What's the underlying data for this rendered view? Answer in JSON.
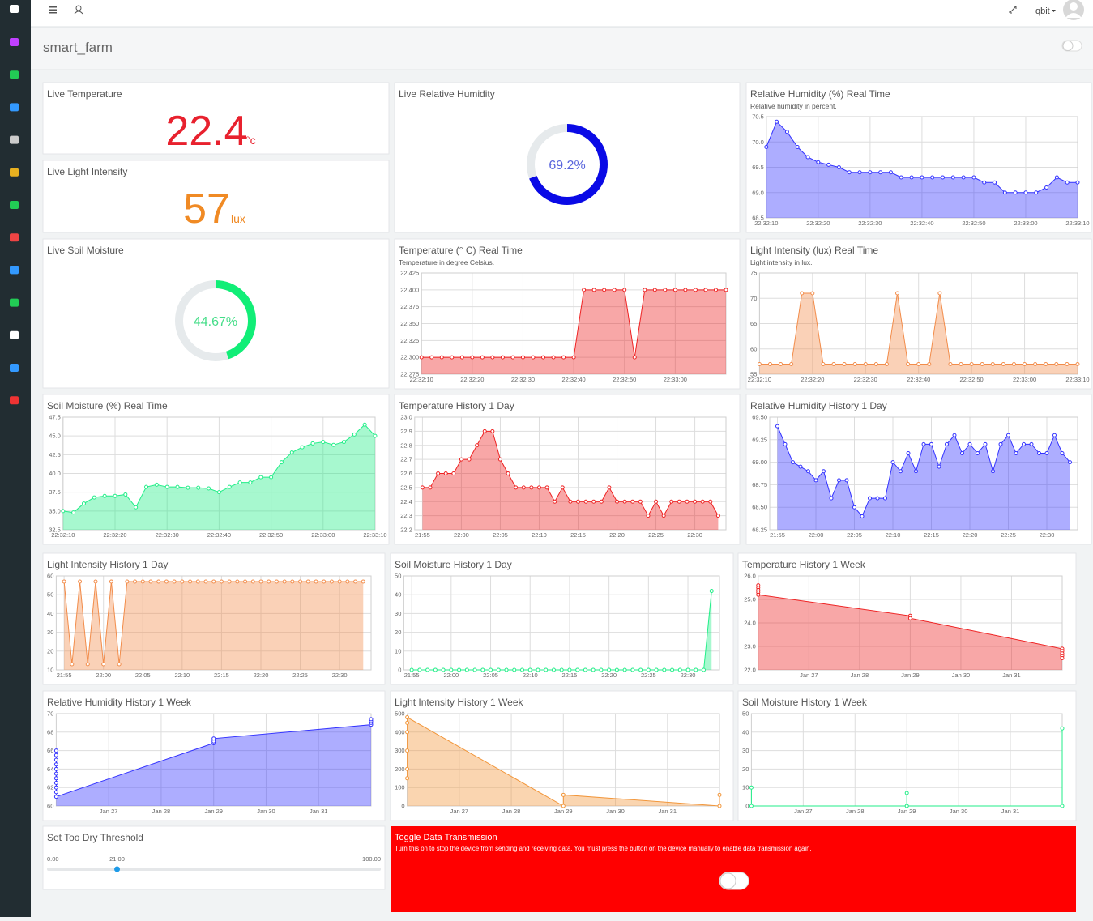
{
  "header": {
    "user": "qbit"
  },
  "page": {
    "title": "smart_farm"
  },
  "widgets": {
    "live_temperature": {
      "title": "Live Temperature",
      "value": 22.4,
      "unit": "°c"
    },
    "live_light": {
      "title": "Live Light Intensity",
      "value": 57,
      "unit": "lux"
    },
    "live_humidity": {
      "title": "Live Relative Humidity",
      "value": 69.2,
      "value_label": "69.2%"
    },
    "live_soil": {
      "title": "Live Soil Moisture",
      "value": 44.67,
      "value_label": "44.67%"
    },
    "threshold": {
      "title": "Set Too Dry Threshold",
      "min": {
        "value": 0,
        "label": "0.00"
      },
      "max": {
        "value": 100,
        "label": "100.00"
      },
      "value": {
        "value": 21,
        "label": "21.00"
      }
    },
    "transmission": {
      "title": "Toggle Data Transmission",
      "description": "Turn this on to stop the device from sending and receiving data. You must press the button on the device manually to enable data transmission again."
    }
  },
  "chart_data": [
    {
      "type": "area",
      "title": "Relative Humidity (%) Real Time",
      "subtitle": "Relative humidity in percent.",
      "color": "#3333ff",
      "grid": true,
      "x": [
        "22:32:10",
        "22:32:12",
        "22:32:14",
        "22:32:16",
        "22:32:18",
        "22:32:20",
        "22:32:22",
        "22:32:24",
        "22:32:26",
        "22:32:28",
        "22:32:30",
        "22:32:32",
        "22:32:34",
        "22:32:36",
        "22:32:38",
        "22:32:40",
        "22:32:42",
        "22:32:44",
        "22:32:46",
        "22:32:48",
        "22:32:50",
        "22:32:52",
        "22:32:54",
        "22:32:56",
        "22:32:58",
        "22:33:00",
        "22:33:02",
        "22:33:04",
        "22:33:06",
        "22:33:08",
        "22:33:10"
      ],
      "values": [
        69.9,
        70.4,
        70.2,
        69.9,
        69.7,
        69.6,
        69.55,
        69.5,
        69.4,
        69.4,
        69.4,
        69.4,
        69.4,
        69.3,
        69.3,
        69.3,
        69.3,
        69.3,
        69.3,
        69.3,
        69.3,
        69.2,
        69.2,
        69.0,
        69.0,
        69.0,
        69.0,
        69.1,
        69.3,
        69.2,
        69.2
      ],
      "xlim": [
        "22:32:10",
        "22:33:10"
      ],
      "xticks": [
        "22:32:10",
        "22:32:20",
        "22:32:30",
        "22:32:40",
        "22:32:50",
        "22:33:00",
        "22:33:10"
      ],
      "ylim": [
        68.5,
        70.5
      ],
      "yticks": [
        68.5,
        {
          "value": 69,
          "label": "69.0"
        },
        69.5,
        {
          "value": 70,
          "label": "70.0"
        },
        70.5
      ]
    },
    {
      "type": "area",
      "title": "Temperature (° C) Real Time",
      "subtitle": "Temperature in degree Celsius.",
      "color": "#ee2222",
      "grid": true,
      "x": [
        "22:32:10",
        "22:32:12",
        "22:32:14",
        "22:32:16",
        "22:32:18",
        "22:32:20",
        "22:32:22",
        "22:32:24",
        "22:32:26",
        "22:32:28",
        "22:32:30",
        "22:32:32",
        "22:32:34",
        "22:32:36",
        "22:32:38",
        "22:32:40",
        "22:32:42",
        "22:32:44",
        "22:32:46",
        "22:32:48",
        "22:32:50",
        "22:32:52",
        "22:32:54",
        "22:32:56",
        "22:32:58",
        "22:33:00",
        "22:33:02",
        "22:33:04",
        "22:33:06",
        "22:33:08",
        "22:33:10"
      ],
      "values": [
        22.3,
        22.3,
        22.3,
        22.3,
        22.3,
        22.3,
        22.3,
        22.3,
        22.3,
        22.3,
        22.3,
        22.3,
        22.3,
        22.3,
        22.3,
        22.3,
        22.4,
        22.4,
        22.4,
        22.4,
        22.4,
        22.3,
        22.4,
        22.4,
        22.4,
        22.4,
        22.4,
        22.4,
        22.4,
        22.4,
        22.4
      ],
      "xlim": [
        "22:32:10",
        "22:33:10"
      ],
      "xticks": [
        "22:32:10",
        "22:32:20",
        "22:32:30",
        "22:32:40",
        "22:32:50",
        "22:33:00"
      ],
      "ylim": [
        22.275,
        22.425
      ],
      "yticks": [
        22.275,
        {
          "value": 22.3,
          "label": "22.300"
        },
        22.325,
        {
          "value": 22.35,
          "label": "22.350"
        },
        22.375,
        {
          "value": 22.4,
          "label": "22.400"
        },
        22.425
      ]
    },
    {
      "type": "area",
      "title": "Light Intensity (lux) Real Time",
      "subtitle": "Light intensity in lux.",
      "color": "#f28c4a",
      "grid": true,
      "x": [
        "22:32:10",
        "22:32:12",
        "22:32:14",
        "22:32:16",
        "22:32:18",
        "22:32:20",
        "22:32:22",
        "22:32:24",
        "22:32:26",
        "22:32:28",
        "22:32:30",
        "22:32:32",
        "22:32:34",
        "22:32:36",
        "22:32:38",
        "22:32:40",
        "22:32:42",
        "22:32:44",
        "22:32:46",
        "22:32:48",
        "22:32:50",
        "22:32:52",
        "22:32:54",
        "22:32:56",
        "22:32:58",
        "22:33:00",
        "22:33:02",
        "22:33:04",
        "22:33:06",
        "22:33:08",
        "22:33:10"
      ],
      "values": [
        57,
        57,
        57,
        57,
        71,
        71,
        57,
        57,
        57,
        57,
        57,
        57,
        57,
        71,
        57,
        57,
        57,
        71,
        57,
        57,
        57,
        57,
        57,
        57,
        57,
        57,
        57,
        57,
        57,
        57,
        57
      ],
      "xlim": [
        "22:32:10",
        "22:33:10"
      ],
      "xticks": [
        "22:32:10",
        "22:32:20",
        "22:32:30",
        "22:32:40",
        "22:32:50",
        "22:33:00",
        "22:33:10"
      ],
      "ylim": [
        55,
        75
      ],
      "yticks": [
        55,
        60,
        65,
        70,
        75
      ]
    },
    {
      "type": "area",
      "title": "Soil Moisture (%) Real Time",
      "color": "#22ee88",
      "grid": true,
      "x": [
        "22:32:10",
        "22:32:12",
        "22:32:14",
        "22:32:16",
        "22:32:18",
        "22:32:20",
        "22:32:22",
        "22:32:24",
        "22:32:26",
        "22:32:28",
        "22:32:30",
        "22:32:32",
        "22:32:34",
        "22:32:36",
        "22:32:38",
        "22:32:40",
        "22:32:42",
        "22:32:44",
        "22:32:46",
        "22:32:48",
        "22:32:50",
        "22:32:52",
        "22:32:54",
        "22:32:56",
        "22:32:58",
        "22:33:00",
        "22:33:02",
        "22:33:04",
        "22:33:06",
        "22:33:08",
        "22:33:10"
      ],
      "values": [
        35.0,
        34.8,
        36.0,
        36.8,
        37.0,
        37.0,
        37.2,
        35.5,
        38.2,
        38.5,
        38.2,
        38.2,
        38.1,
        38.1,
        38.0,
        37.5,
        38.2,
        38.8,
        38.8,
        39.5,
        39.5,
        41.5,
        42.8,
        43.5,
        44.0,
        44.2,
        43.8,
        44.2,
        45.2,
        46.5,
        45.0
      ],
      "xlim": [
        "22:32:10",
        "22:33:10"
      ],
      "xticks": [
        "22:32:10",
        "22:32:20",
        "22:32:30",
        "22:32:40",
        "22:32:50",
        "22:33:00",
        "22:33:10"
      ],
      "ylim": [
        32.5,
        47.5
      ],
      "yticks": [
        32.5,
        {
          "value": 35,
          "label": "35.0"
        },
        37.5,
        {
          "value": 40,
          "label": "40.0"
        },
        42.5,
        {
          "value": 45,
          "label": "45.0"
        },
        47.5
      ]
    },
    {
      "type": "area",
      "title": "Temperature History 1 Day",
      "color": "#ee2222",
      "grid": true,
      "x": [
        "21:55",
        "21:56",
        "21:57",
        "21:58",
        "21:59",
        "22:00",
        "22:01",
        "22:02",
        "22:03",
        "22:04",
        "22:05",
        "22:06",
        "22:07",
        "22:08",
        "22:09",
        "22:10",
        "22:11",
        "22:12",
        "22:13",
        "22:14",
        "22:15",
        "22:16",
        "22:17",
        "22:18",
        "22:19",
        "22:20",
        "22:21",
        "22:22",
        "22:23",
        "22:24",
        "22:25",
        "22:26",
        "22:27",
        "22:28",
        "22:29",
        "22:30",
        "22:31",
        "22:32",
        "22:33"
      ],
      "values": [
        22.5,
        22.5,
        22.6,
        22.6,
        22.6,
        22.7,
        22.7,
        22.8,
        22.9,
        22.9,
        22.7,
        22.6,
        22.5,
        22.5,
        22.5,
        22.5,
        22.5,
        22.4,
        22.5,
        22.4,
        22.4,
        22.4,
        22.4,
        22.4,
        22.5,
        22.4,
        22.4,
        22.4,
        22.4,
        22.3,
        22.4,
        22.3,
        22.4,
        22.4,
        22.4,
        22.4,
        22.4,
        22.4,
        22.3
      ],
      "xlim": [
        "21:54",
        "22:34"
      ],
      "xticks": [
        "21:55",
        "22:00",
        "22:05",
        "22:10",
        "22:15",
        "22:20",
        "22:25",
        "22:30"
      ],
      "ylim": [
        22.2,
        23.0
      ],
      "yticks": [
        22.2,
        22.3,
        22.4,
        22.5,
        22.6,
        22.7,
        22.8,
        22.9,
        {
          "value": 23,
          "label": "23.0"
        }
      ]
    },
    {
      "type": "area",
      "title": "Relative Humidity History 1 Day",
      "color": "#3333ff",
      "grid": true,
      "x": [
        "21:55",
        "21:56",
        "21:57",
        "21:58",
        "21:59",
        "22:00",
        "22:01",
        "22:02",
        "22:03",
        "22:04",
        "22:05",
        "22:06",
        "22:07",
        "22:08",
        "22:09",
        "22:10",
        "22:11",
        "22:12",
        "22:13",
        "22:14",
        "22:15",
        "22:16",
        "22:17",
        "22:18",
        "22:19",
        "22:20",
        "22:21",
        "22:22",
        "22:23",
        "22:24",
        "22:25",
        "22:26",
        "22:27",
        "22:28",
        "22:29",
        "22:30",
        "22:31",
        "22:32",
        "22:33"
      ],
      "values": [
        69.4,
        69.2,
        69.0,
        68.95,
        68.9,
        68.8,
        68.9,
        68.6,
        68.8,
        68.8,
        68.5,
        68.4,
        68.6,
        68.6,
        68.6,
        69.0,
        68.9,
        69.1,
        68.9,
        69.2,
        69.2,
        68.95,
        69.2,
        69.3,
        69.1,
        69.2,
        69.1,
        69.2,
        68.9,
        69.2,
        69.3,
        69.1,
        69.2,
        69.2,
        69.1,
        69.1,
        69.3,
        69.1,
        69.0
      ],
      "xlim": [
        "21:54",
        "22:34"
      ],
      "xticks": [
        "21:55",
        "22:00",
        "22:05",
        "22:10",
        "22:15",
        "22:20",
        "22:25",
        "22:30"
      ],
      "ylim": [
        68.25,
        69.5
      ],
      "yticks": [
        68.25,
        {
          "value": 68.5,
          "label": "68.50"
        },
        68.75,
        {
          "value": 69,
          "label": "69.00"
        },
        69.25,
        {
          "value": 69.5,
          "label": "69.50"
        }
      ]
    },
    {
      "type": "area",
      "title": "Light Intensity History 1 Day",
      "color": "#f28c4a",
      "grid": true,
      "x": [
        "21:55",
        "21:56",
        "21:57",
        "21:58",
        "21:59",
        "22:00",
        "22:01",
        "22:02",
        "22:03",
        "22:04",
        "22:05",
        "22:06",
        "22:07",
        "22:08",
        "22:09",
        "22:10",
        "22:11",
        "22:12",
        "22:13",
        "22:14",
        "22:15",
        "22:16",
        "22:17",
        "22:18",
        "22:19",
        "22:20",
        "22:21",
        "22:22",
        "22:23",
        "22:24",
        "22:25",
        "22:26",
        "22:27",
        "22:28",
        "22:29",
        "22:30",
        "22:31",
        "22:32",
        "22:33"
      ],
      "values": [
        57,
        13,
        57,
        13,
        57,
        13,
        57,
        13,
        57,
        57,
        57,
        57,
        57,
        57,
        57,
        57,
        57,
        57,
        57,
        57,
        57,
        57,
        57,
        57,
        57,
        57,
        57,
        57,
        57,
        57,
        57,
        57,
        57,
        57,
        57,
        57,
        57,
        57,
        57
      ],
      "xlim": [
        "21:54",
        "22:34"
      ],
      "xticks": [
        "21:55",
        "22:00",
        "22:05",
        "22:10",
        "22:15",
        "22:20",
        "22:25",
        "22:30"
      ],
      "ylim": [
        10,
        60
      ],
      "yticks": [
        10,
        20,
        30,
        40,
        50,
        60
      ]
    },
    {
      "type": "area",
      "title": "Soil Moisture History 1 Day",
      "color": "#22ee88",
      "grid": true,
      "x": [
        "21:55",
        "21:56",
        "21:57",
        "21:58",
        "21:59",
        "22:00",
        "22:01",
        "22:02",
        "22:03",
        "22:04",
        "22:05",
        "22:06",
        "22:07",
        "22:08",
        "22:09",
        "22:10",
        "22:11",
        "22:12",
        "22:13",
        "22:14",
        "22:15",
        "22:16",
        "22:17",
        "22:18",
        "22:19",
        "22:20",
        "22:21",
        "22:22",
        "22:23",
        "22:24",
        "22:25",
        "22:26",
        "22:27",
        "22:28",
        "22:29",
        "22:30",
        "22:31",
        "22:32",
        "22:33"
      ],
      "values": [
        0,
        0,
        0,
        0,
        0,
        0,
        0,
        0,
        0,
        0,
        0,
        0,
        0,
        0,
        0,
        0,
        0,
        0,
        0,
        0,
        0,
        0,
        0,
        0,
        0,
        0,
        0,
        0,
        0,
        0,
        0,
        0,
        0,
        0,
        0,
        0,
        0,
        0,
        42
      ],
      "xlim": [
        "21:54",
        "22:34"
      ],
      "xticks": [
        "21:55",
        "22:00",
        "22:05",
        "22:10",
        "22:15",
        "22:20",
        "22:25",
        "22:30"
      ],
      "ylim": [
        0,
        50
      ],
      "yticks": [
        0,
        10,
        20,
        30,
        40,
        50
      ]
    },
    {
      "type": "area",
      "title": "Temperature History 1 Week",
      "color": "#ee2222",
      "grid": true,
      "x": [
        "Jan 26",
        "Jan 26",
        "Jan 26",
        "Jan 26",
        "Jan 26",
        "Jan 29",
        "Jan 29",
        "Feb 1",
        "Feb 1",
        "Feb 1",
        "Feb 1",
        "Feb 1"
      ],
      "values": [
        25.6,
        25.5,
        25.4,
        25.3,
        25.2,
        24.3,
        24.2,
        22.9,
        22.8,
        22.7,
        22.6,
        22.5
      ],
      "xlim": [
        "Jan 26",
        "Feb 1"
      ],
      "xticks": [
        "Jan 27",
        "Jan 28",
        "Jan 29",
        "Jan 30",
        "Jan 31"
      ],
      "ylim": [
        22,
        26
      ],
      "yticks": [
        {
          "value": 22,
          "label": "22.0"
        },
        {
          "value": 23,
          "label": "23.0"
        },
        {
          "value": 24,
          "label": "24.0"
        },
        {
          "value": 25,
          "label": "25.0"
        },
        {
          "value": 26,
          "label": "26.0"
        }
      ]
    },
    {
      "type": "area",
      "title": "Relative Humidity History 1 Week",
      "color": "#3333ff",
      "grid": true,
      "x": [
        "Jan 26",
        "Jan 26",
        "Jan 26",
        "Jan 26",
        "Jan 26",
        "Jan 26",
        "Jan 26",
        "Jan 26",
        "Jan 26",
        "Jan 26",
        "Jan 26",
        "Jan 29",
        "Jan 29",
        "Jan 29",
        "Feb 1",
        "Feb 1",
        "Feb 1",
        "Feb 1"
      ],
      "values": [
        66,
        65.5,
        65,
        64.5,
        64,
        63.5,
        63,
        62.5,
        62,
        61.5,
        61,
        66.8,
        67,
        67.3,
        68.8,
        69,
        69.2,
        69.4
      ],
      "xlim": [
        "Jan 26",
        "Feb 1"
      ],
      "xticks": [
        "Jan 27",
        "Jan 28",
        "Jan 29",
        "Jan 30",
        "Jan 31"
      ],
      "ylim": [
        60,
        70
      ],
      "yticks": [
        60,
        62,
        64,
        66,
        68,
        70
      ]
    },
    {
      "type": "area",
      "title": "Light Intensity History 1 Week",
      "color": "#f2963a",
      "grid": true,
      "x": [
        "Jan 26",
        "Jan 26",
        "Jan 26",
        "Jan 26",
        "Jan 26",
        "Jan 26",
        "Jan 29",
        "Jan 29",
        "Feb 1",
        "Feb 1"
      ],
      "values": [
        150,
        200,
        300,
        400,
        450,
        480,
        0,
        60,
        0,
        60
      ],
      "xlim": [
        "Jan 26",
        "Feb 1"
      ],
      "xticks": [
        "Jan 27",
        "Jan 28",
        "Jan 29",
        "Jan 30",
        "Jan 31"
      ],
      "ylim": [
        0,
        500
      ],
      "yticks": [
        0,
        100,
        200,
        300,
        400,
        500
      ]
    },
    {
      "type": "area",
      "title": "Soil Moisture History 1 Week",
      "color": "#22ee88",
      "grid": true,
      "x": [
        "Jan 26",
        "Jan 26",
        "Jan 29",
        "Jan 29",
        "Jan 29",
        "Feb 1",
        "Feb 1"
      ],
      "values": [
        10,
        0,
        0,
        7,
        0,
        0,
        42
      ],
      "xlim": [
        "Jan 26",
        "Feb 1"
      ],
      "xticks": [
        "Jan 27",
        "Jan 28",
        "Jan 29",
        "Jan 30",
        "Jan 31"
      ],
      "ylim": [
        0,
        50
      ],
      "yticks": [
        0,
        10,
        20,
        30,
        40,
        50
      ]
    }
  ]
}
